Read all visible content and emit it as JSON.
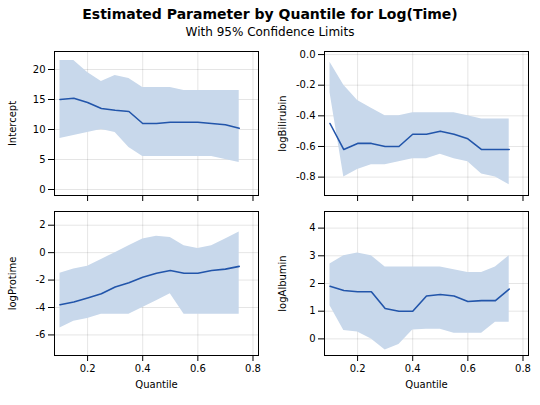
{
  "title": "Estimated Parameter by Quantile for Log(Time)",
  "subtitle": "With 95% Confidence Limits",
  "chart_data": [
    {
      "type": "line",
      "ylabel": "Intercept",
      "x": [
        0.1,
        0.15,
        0.2,
        0.25,
        0.3,
        0.35,
        0.4,
        0.45,
        0.5,
        0.55,
        0.6,
        0.65,
        0.7,
        0.75
      ],
      "xlim": [
        0.08,
        0.82
      ],
      "xticks": [
        0.2,
        0.4,
        0.6,
        0.8
      ],
      "ylim": [
        -1,
        23
      ],
      "yticks": [
        0,
        5,
        10,
        15,
        20
      ],
      "grid": true,
      "tick_labels": "y",
      "series": [
        {
          "type": "area",
          "color": "#c8d8eb",
          "lower": [
            8.5,
            9.0,
            9.5,
            10.0,
            9.5,
            7.0,
            5.5,
            5.5,
            5.5,
            5.5,
            5.5,
            5.5,
            5.0,
            4.5
          ],
          "upper": [
            21.5,
            21.5,
            19.5,
            18.0,
            19.0,
            18.5,
            17.0,
            17.0,
            17.0,
            16.5,
            16.5,
            16.5,
            16.5,
            16.5
          ]
        },
        {
          "type": "line",
          "color": "#2255aa",
          "values": [
            15.0,
            15.2,
            14.5,
            13.5,
            13.2,
            13.0,
            11.0,
            11.0,
            11.2,
            11.2,
            11.2,
            11.0,
            10.8,
            10.2
          ]
        }
      ]
    },
    {
      "type": "line",
      "ylabel": "logBilirubin",
      "x": [
        0.1,
        0.15,
        0.2,
        0.25,
        0.3,
        0.35,
        0.4,
        0.45,
        0.5,
        0.55,
        0.6,
        0.65,
        0.7,
        0.75
      ],
      "xlim": [
        0.08,
        0.82
      ],
      "xticks": [
        0.2,
        0.4,
        0.6,
        0.8
      ],
      "ylim": [
        -0.92,
        0.02
      ],
      "yticks": [
        {
          "value": 0.0,
          "label": "0.0"
        },
        -0.2,
        -0.4,
        -0.6,
        -0.8
      ],
      "grid": true,
      "tick_labels": "y",
      "series": [
        {
          "type": "area",
          "color": "#c8d8eb",
          "lower": [
            -0.25,
            -0.8,
            -0.75,
            -0.72,
            -0.72,
            -0.7,
            -0.68,
            -0.68,
            -0.65,
            -0.68,
            -0.7,
            -0.78,
            -0.8,
            -0.85
          ],
          "upper": [
            -0.05,
            -0.2,
            -0.3,
            -0.35,
            -0.4,
            -0.4,
            -0.38,
            -0.38,
            -0.38,
            -0.38,
            -0.4,
            -0.42,
            -0.42,
            -0.42
          ]
        },
        {
          "type": "line",
          "color": "#2255aa",
          "values": [
            -0.45,
            -0.62,
            -0.58,
            -0.58,
            -0.6,
            -0.6,
            -0.52,
            -0.52,
            -0.5,
            -0.52,
            -0.55,
            -0.62,
            -0.62,
            -0.62
          ]
        }
      ]
    },
    {
      "type": "line",
      "ylabel": "logProtime",
      "xlabel": "Quantile",
      "x": [
        0.1,
        0.15,
        0.2,
        0.25,
        0.3,
        0.35,
        0.4,
        0.45,
        0.5,
        0.55,
        0.6,
        0.65,
        0.7,
        0.75
      ],
      "xlim": [
        0.08,
        0.82
      ],
      "xticks": [
        0.2,
        0.4,
        0.6,
        0.8
      ],
      "ylim": [
        -7.5,
        3.0
      ],
      "yticks": [
        -6,
        -4,
        -2,
        0,
        2
      ],
      "grid": true,
      "series": [
        {
          "type": "area",
          "color": "#c8d8eb",
          "lower": [
            -5.5,
            -5.0,
            -4.8,
            -4.5,
            -4.5,
            -4.5,
            -4.0,
            -3.5,
            -3.0,
            -4.5,
            -4.5,
            -4.5,
            -4.5,
            -4.5
          ],
          "upper": [
            -1.5,
            -1.2,
            -1.0,
            -0.5,
            0.0,
            0.5,
            1.0,
            1.2,
            1.1,
            0.5,
            0.3,
            0.5,
            1.0,
            1.5
          ]
        },
        {
          "type": "line",
          "color": "#2255aa",
          "values": [
            -3.8,
            -3.6,
            -3.3,
            -3.0,
            -2.5,
            -2.2,
            -1.8,
            -1.5,
            -1.3,
            -1.5,
            -1.5,
            -1.3,
            -1.2,
            -1.0
          ]
        }
      ]
    },
    {
      "type": "line",
      "ylabel": "logAlbumin",
      "xlabel": "Quantile",
      "x": [
        0.1,
        0.15,
        0.2,
        0.25,
        0.3,
        0.35,
        0.4,
        0.45,
        0.5,
        0.55,
        0.6,
        0.65,
        0.7,
        0.75
      ],
      "xlim": [
        0.08,
        0.82
      ],
      "xticks": [
        0.2,
        0.4,
        0.6,
        0.8
      ],
      "ylim": [
        -0.6,
        4.6
      ],
      "yticks": [
        0,
        1,
        2,
        3,
        4
      ],
      "grid": true,
      "series": [
        {
          "type": "area",
          "color": "#c8d8eb",
          "lower": [
            1.2,
            0.3,
            0.25,
            0.0,
            -0.4,
            -0.2,
            0.32,
            0.35,
            0.35,
            0.2,
            0.2,
            0.2,
            0.6,
            0.6
          ],
          "upper": [
            2.7,
            3.0,
            3.1,
            3.0,
            2.6,
            2.6,
            2.6,
            2.6,
            2.6,
            2.5,
            2.4,
            2.4,
            2.6,
            3.0
          ]
        },
        {
          "type": "line",
          "color": "#2255aa",
          "values": [
            1.9,
            1.75,
            1.7,
            1.7,
            1.1,
            1.0,
            1.0,
            1.55,
            1.6,
            1.55,
            1.35,
            1.38,
            1.38,
            1.8
          ]
        }
      ]
    }
  ]
}
